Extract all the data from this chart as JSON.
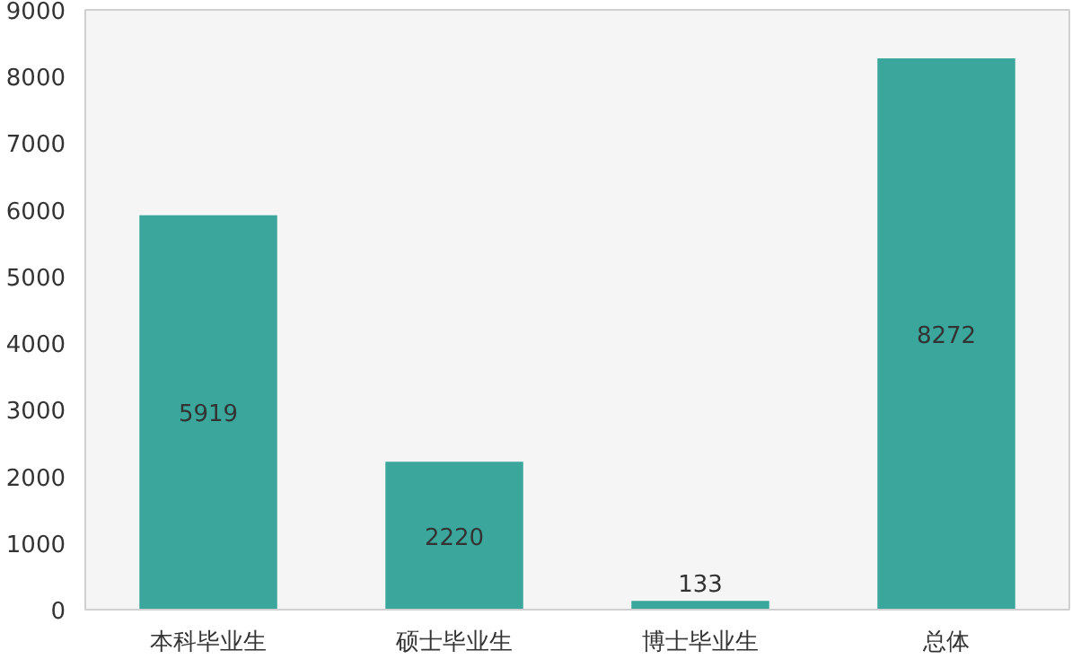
{
  "chart_data": {
    "type": "bar",
    "categories": [
      "本科毕业生",
      "硕士毕业生",
      "博士毕业生",
      "总体"
    ],
    "values": [
      5919,
      2220,
      133,
      8272
    ],
    "color": "#3aa69c",
    "ylim": [
      0,
      9000
    ],
    "yticks": [
      0,
      1000,
      2000,
      3000,
      4000,
      5000,
      6000,
      7000,
      8000,
      9000
    ],
    "grid": false,
    "data_labels": true
  }
}
